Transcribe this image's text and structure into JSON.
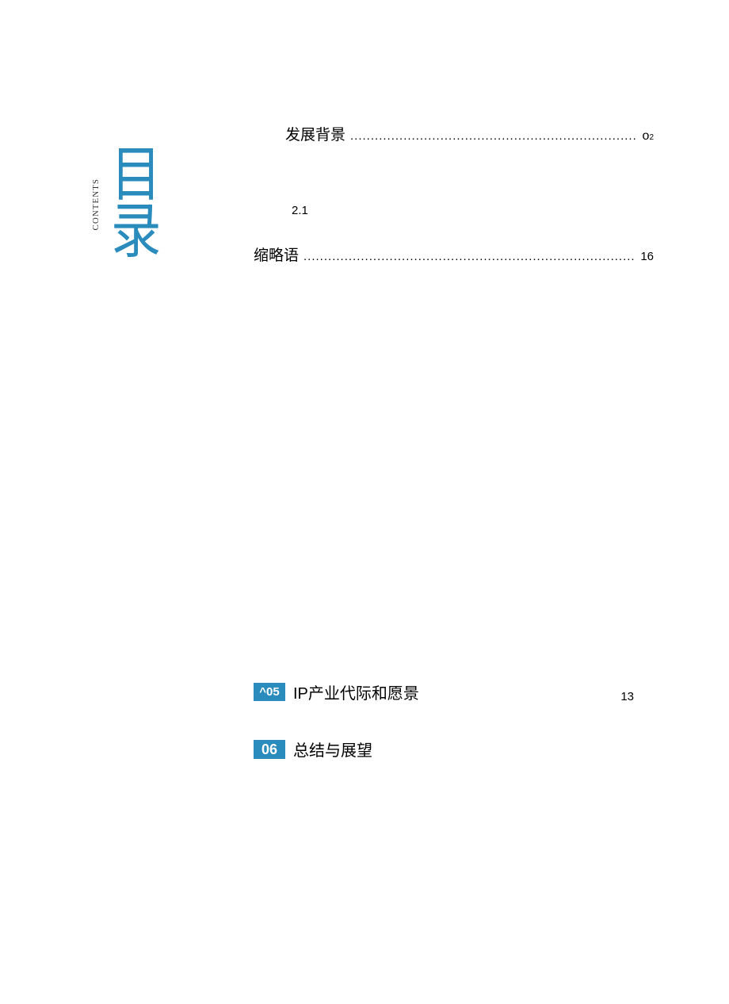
{
  "sidebar": {
    "contents_label": "CONTENTS"
  },
  "heading": {
    "line1": "目",
    "line2": "录",
    "color": "#2a8bbd",
    "fontsize": 72
  },
  "toc": {
    "entry1": {
      "title": "发展背景",
      "leader": "..........................................................................",
      "page_prefix": "o",
      "page_sub": "2"
    },
    "sub_number": "2.1",
    "entry2": {
      "title": "缩略语",
      "leader": "...................................................................................",
      "page": "16"
    }
  },
  "sections": {
    "s5": {
      "num": "^05",
      "title": "IP产业代际和愿景",
      "page": "13",
      "box_color": "#2a8bbd"
    },
    "s6": {
      "num": "06",
      "title": "总结与展望",
      "box_color": "#2a8bbd"
    }
  },
  "page_background": "#ffffff"
}
